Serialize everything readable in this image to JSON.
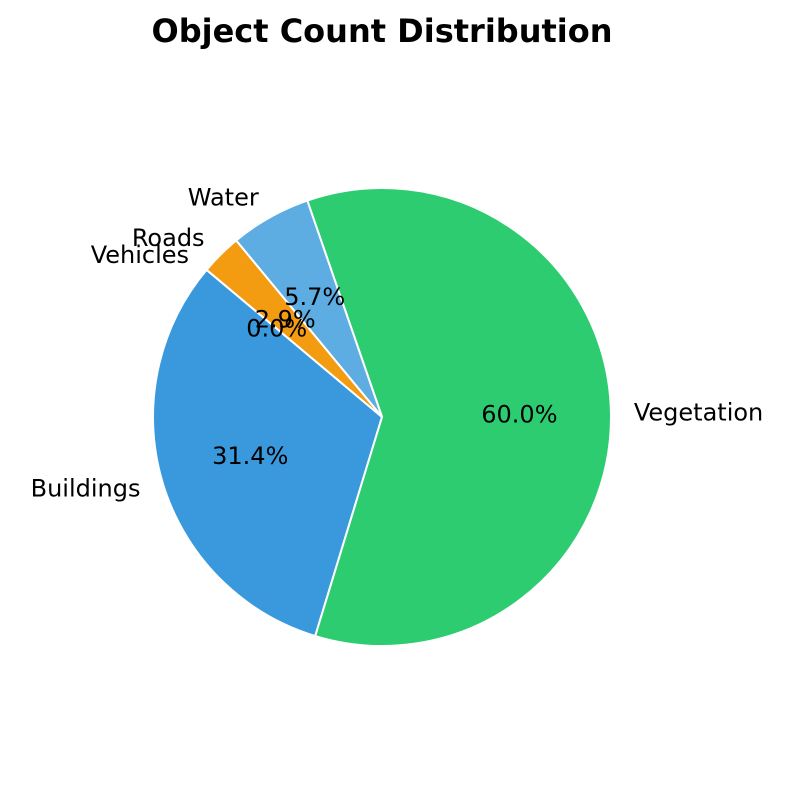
{
  "chart_data": {
    "type": "pie",
    "title": "Object Count Distribution",
    "categories": [
      "Buildings",
      "Vegetation",
      "Water",
      "Roads",
      "Vehicles"
    ],
    "values": [
      31.4,
      60.0,
      5.7,
      2.9,
      0.0
    ],
    "value_labels": [
      "31.4%",
      "60.0%",
      "5.7%",
      "2.9%",
      "0.0%"
    ],
    "colors": [
      "#3a99dc",
      "#2ecc71",
      "#5dade2",
      "#f39c12",
      "#e74c3c"
    ],
    "slice_edge_color": "#ffffff",
    "legend": "none",
    "start_angle_deg": 140,
    "direction": "counterclockwise"
  }
}
